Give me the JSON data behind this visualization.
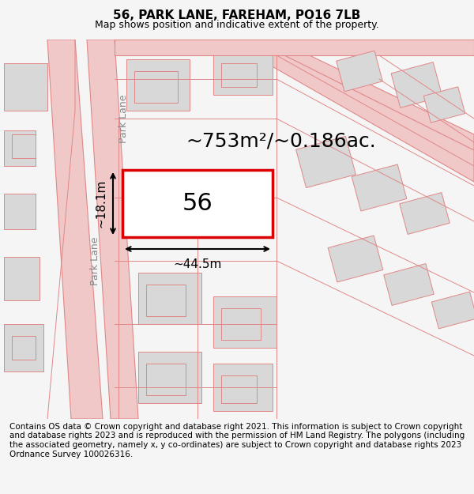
{
  "title": "56, PARK LANE, FAREHAM, PO16 7LB",
  "subtitle": "Map shows position and indicative extent of the property.",
  "footer": "Contains OS data © Crown copyright and database right 2021. This information is subject to Crown copyright and database rights 2023 and is reproduced with the permission of HM Land Registry. The polygons (including the associated geometry, namely x, y co-ordinates) are subject to Crown copyright and database rights 2023 Ordnance Survey 100026316.",
  "area_label": "~753m²/~0.186ac.",
  "width_label": "~44.5m",
  "height_label": "~18.1m",
  "plot_number": "56",
  "bg_color": "#f5f5f5",
  "map_bg": "#ffffff",
  "plot_fill": "#ffffff",
  "plot_edge": "#dd0000",
  "road_color": "#f0c8c8",
  "building_color": "#d8d8d8",
  "road_line_color": "#e08888",
  "street_label": "Park Lane",
  "title_fontsize": 11,
  "subtitle_fontsize": 9,
  "footer_fontsize": 7.5,
  "label_fontsize": 18
}
